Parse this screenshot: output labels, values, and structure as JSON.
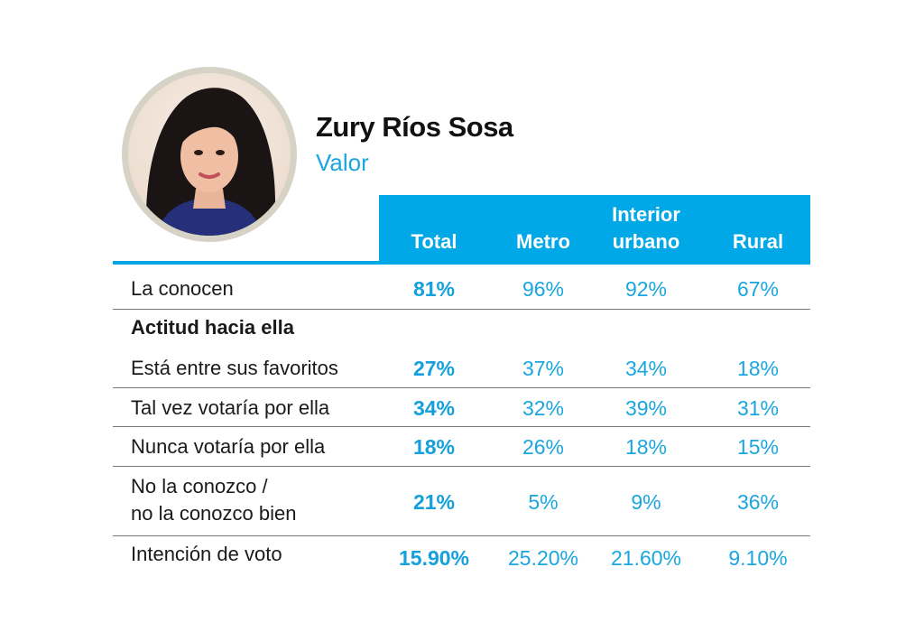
{
  "candidate": {
    "name": "Zury Ríos Sosa",
    "party": "Valor"
  },
  "columns": {
    "total": "Total",
    "metro": "Metro",
    "interior": "Interior urbano",
    "rural": "Rural"
  },
  "rows": {
    "conocen": {
      "label": "La conocen",
      "total": "81%",
      "metro": "96%",
      "interior": "92%",
      "rural": "67%"
    },
    "section": {
      "label": "Actitud hacia ella"
    },
    "favoritos": {
      "label": "Está entre sus favoritos",
      "total": "27%",
      "metro": "37%",
      "interior": "34%",
      "rural": "18%"
    },
    "talvez": {
      "label": "Tal vez votaría por ella",
      "total": "34%",
      "metro": "32%",
      "interior": "39%",
      "rural": "31%"
    },
    "nunca": {
      "label": "Nunca votaría por ella",
      "total": "18%",
      "metro": "26%",
      "interior": "18%",
      "rural": "15%"
    },
    "noconozco": {
      "label_line1": "No la conozco /",
      "label_line2": "no la conozco bien",
      "total": "21%",
      "metro": "5%",
      "interior": "9%",
      "rural": "36%"
    },
    "intencion": {
      "label": "Intención de voto",
      "total": "15.90%",
      "metro": "25.20%",
      "interior": "21.60%",
      "rural": "9.10%"
    }
  }
}
